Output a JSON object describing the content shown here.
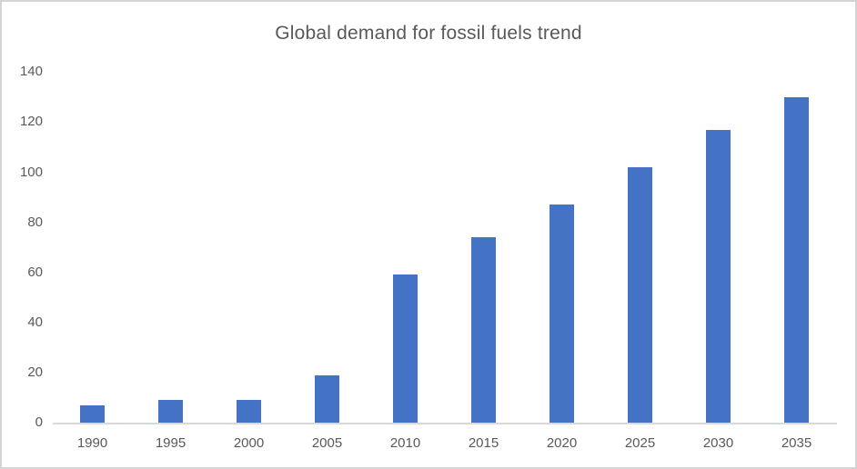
{
  "frame": {
    "background": "#ffffff",
    "border_color": "#d4d4d4"
  },
  "chart_data": {
    "type": "bar",
    "title": "Global demand for fossil fuels trend",
    "categories": [
      "1990",
      "1995",
      "2000",
      "2005",
      "2010",
      "2015",
      "2020",
      "2025",
      "2030",
      "2035"
    ],
    "values": [
      7,
      9,
      9,
      19,
      59,
      74,
      87,
      102,
      117,
      130
    ],
    "xlabel": "",
    "ylabel": "",
    "ylim": [
      0,
      140
    ],
    "yticks": [
      0,
      20,
      40,
      60,
      80,
      100,
      120,
      140
    ],
    "grid": false,
    "legend": "none",
    "bar_color": "#4472C4",
    "text_color": "#595959",
    "axis_line_color": "#D9D9D9"
  }
}
